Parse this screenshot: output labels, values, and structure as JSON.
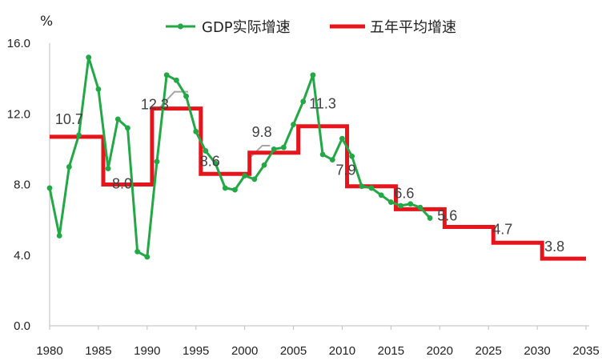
{
  "chart_data": {
    "type": "line",
    "ylabel": "%",
    "ylim": [
      0,
      16
    ],
    "yticks": [
      "0.0",
      "4.0",
      "8.0",
      "12.0",
      "16.0"
    ],
    "xlim": [
      1980,
      2035
    ],
    "xticks": [
      "1980",
      "1985",
      "1990",
      "1995",
      "2000",
      "2005",
      "2010",
      "2015",
      "2020",
      "2025",
      "2030",
      "2035"
    ],
    "legend_position": "top",
    "colors": {
      "gdp": "#22a845",
      "avg": "#e8141b"
    },
    "series": [
      {
        "name": "GDP实际增速",
        "x": [
          1980,
          1981,
          1982,
          1983,
          1984,
          1985,
          1986,
          1987,
          1988,
          1989,
          1990,
          1991,
          1992,
          1993,
          1994,
          1995,
          1996,
          1997,
          1998,
          1999,
          2000,
          2001,
          2002,
          2003,
          2004,
          2005,
          2006,
          2007,
          2008,
          2009,
          2010,
          2011,
          2012,
          2013,
          2014,
          2015,
          2016,
          2017,
          2018,
          2019
        ],
        "values": [
          7.8,
          5.1,
          9.0,
          10.8,
          15.2,
          13.4,
          8.9,
          11.7,
          11.2,
          4.2,
          3.9,
          9.3,
          14.2,
          13.9,
          13.0,
          11.0,
          9.9,
          9.2,
          7.8,
          7.7,
          8.5,
          8.3,
          9.1,
          10.0,
          10.1,
          11.4,
          12.7,
          14.2,
          9.7,
          9.4,
          10.6,
          9.6,
          7.9,
          7.8,
          7.4,
          7.0,
          6.8,
          6.9,
          6.7,
          6.1
        ]
      },
      {
        "name": "五年平均增速",
        "periods": [
          {
            "start": 1980,
            "end": 1985,
            "value": 10.7,
            "label": "10.7"
          },
          {
            "start": 1986,
            "end": 1990,
            "value": 8.0,
            "label": "8.0"
          },
          {
            "start": 1991,
            "end": 1995,
            "value": 12.3,
            "label": "12.3"
          },
          {
            "start": 1996,
            "end": 2000,
            "value": 8.6,
            "label": "8.6"
          },
          {
            "start": 2001,
            "end": 2005,
            "value": 9.8,
            "label": "9.8"
          },
          {
            "start": 2006,
            "end": 2010,
            "value": 11.3,
            "label": "11.3"
          },
          {
            "start": 2011,
            "end": 2015,
            "value": 7.9,
            "label": "7.9"
          },
          {
            "start": 2016,
            "end": 2020,
            "value": 6.6,
            "label": "6.6"
          },
          {
            "start": 2021,
            "end": 2025,
            "value": 5.6,
            "label": "5.6"
          },
          {
            "start": 2026,
            "end": 2030,
            "value": 4.7,
            "label": "4.7"
          },
          {
            "start": 2031,
            "end": 2035,
            "value": 3.8,
            "label": "3.8"
          }
        ]
      }
    ]
  }
}
